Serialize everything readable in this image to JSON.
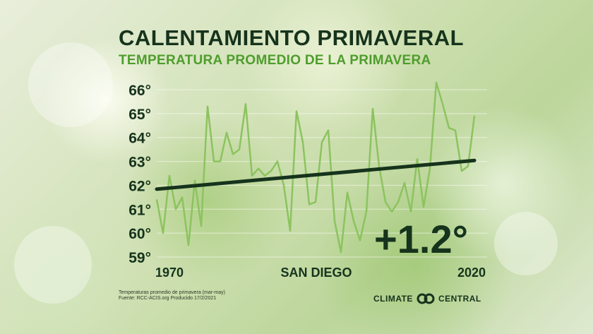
{
  "header": {
    "title": "CALENTAMIENTO PRIMAVERAL",
    "subtitle": "TEMPERATURA PROMEDIO DE LA PRIMAVERA"
  },
  "chart_data": {
    "type": "line",
    "title": "CALENTAMIENTO PRIMAVERAL",
    "subtitle": "TEMPERATURA PROMEDIO DE LA PRIMAVERA",
    "station": "SAN DIEGO",
    "change_label": "+1.2°",
    "xlabel": "",
    "ylabel": "",
    "ylim": [
      59,
      66
    ],
    "xlim": [
      1970,
      2020
    ],
    "y_ticks": [
      "59°",
      "60°",
      "61°",
      "62°",
      "63°",
      "64°",
      "65°",
      "66°"
    ],
    "x_ticks": [
      "1970",
      "2020"
    ],
    "grid": "horizontal",
    "series": [
      {
        "x": [
          1970,
          1971,
          1972,
          1973,
          1974,
          1975,
          1976,
          1977,
          1978,
          1979,
          1980,
          1981,
          1982,
          1983,
          1984,
          1985,
          1986,
          1987,
          1988,
          1989,
          1990,
          1991,
          1992,
          1993,
          1994,
          1995,
          1996,
          1997,
          1998,
          1999,
          2000,
          2001,
          2002,
          2003,
          2004,
          2005,
          2006,
          2007,
          2008,
          2009,
          2010,
          2011,
          2012,
          2013,
          2014,
          2015,
          2016,
          2017,
          2018,
          2019,
          2020
        ],
        "values": [
          61.4,
          60.0,
          62.4,
          61.0,
          61.5,
          59.5,
          62.2,
          60.3,
          65.3,
          63.0,
          63.0,
          64.2,
          63.3,
          63.5,
          65.4,
          62.4,
          62.7,
          62.4,
          62.6,
          63.0,
          62.0,
          60.1,
          65.1,
          63.8,
          61.2,
          61.3,
          63.8,
          64.3,
          60.5,
          59.2,
          61.7,
          60.5,
          59.7,
          60.9,
          65.2,
          62.8,
          61.3,
          60.9,
          61.3,
          62.1,
          60.9,
          63.1,
          61.1,
          62.7,
          66.3,
          65.4,
          64.4,
          64.3,
          62.6,
          62.8,
          64.9
        ]
      },
      {
        "name": "trend",
        "x": [
          1970,
          2020
        ],
        "values": [
          61.84,
          63.04
        ]
      }
    ],
    "colors": {
      "data_line": "#8cc35f",
      "trend_line": "#16331c"
    }
  },
  "footnote": {
    "line1": "Temperaturas promedio de primavera (mar-may)",
    "line2": "Fuente: RCC-ACIS.org Producido 17/2/2021"
  },
  "brand": {
    "left": "CLIMATE",
    "right": "CENTRAL",
    "logo_icon": "climate-central-logo-icon"
  }
}
